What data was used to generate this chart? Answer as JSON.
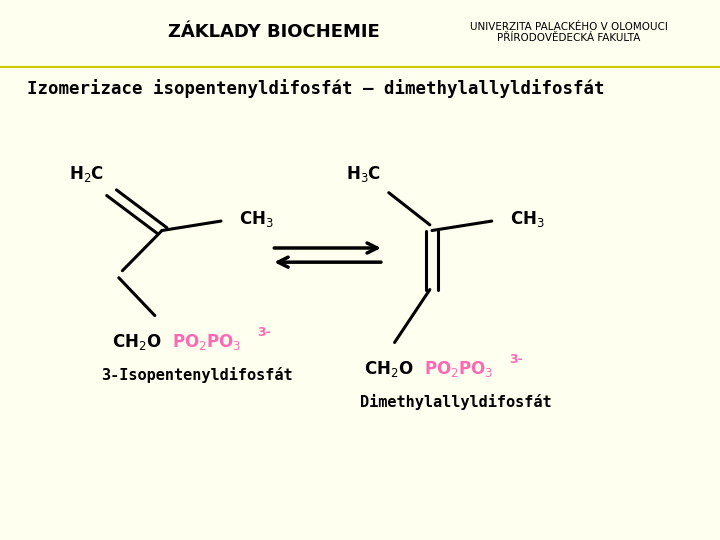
{
  "title": "Izomerizace isopentenyldifosfát – dimethylallyldifosfát",
  "bg_color": "#fffff0",
  "header_bg": "#ffff88",
  "black": "#000000",
  "pink": "#ff69b4",
  "label_left": "3-Isopentenyldifosfát",
  "label_right": "Dimethylallyldifosfát",
  "header_center": "ZÁKLADY BIOCHEMIE",
  "header_right": "UNIVERZITA PALACKÉHO V OLOMOUCI\nPŘÍRODOVĚDECKÁ FAKULTA"
}
